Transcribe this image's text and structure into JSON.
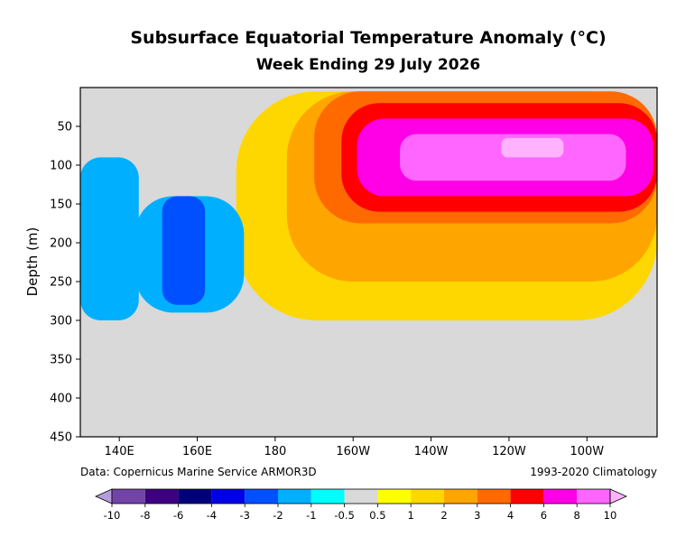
{
  "chart_data": {
    "type": "heatmap",
    "title": "Subsurface Equatorial Temperature Anomaly (°C)",
    "subtitle": "Week Ending 29 July 2026",
    "xlabel": "",
    "ylabel": "Depth (m)",
    "x_ticks": [
      {
        "value": 140,
        "label": "140E"
      },
      {
        "value": 160,
        "label": "160E"
      },
      {
        "value": 180,
        "label": "180"
      },
      {
        "value": 200,
        "label": "160W"
      },
      {
        "value": 220,
        "label": "140W"
      },
      {
        "value": 240,
        "label": "120W"
      },
      {
        "value": 260,
        "label": "100W"
      }
    ],
    "xlim": [
      130,
      278
    ],
    "y_ticks": [
      50,
      100,
      150,
      200,
      250,
      300,
      350,
      400,
      450
    ],
    "ylim": [
      450,
      0
    ],
    "y_inverted": true,
    "source_note": "Data: Copernicus Marine Service ARMOR3D",
    "climatology_note": "1993-2020 Climatology",
    "colorbar": {
      "extend": "both",
      "levels": [
        "-10",
        "-8",
        "-6",
        "-4",
        "-3",
        "-2",
        "-1",
        "-0.5",
        "0.5",
        "1",
        "2",
        "3",
        "4",
        "6",
        "8",
        "10"
      ],
      "colors": [
        "#b39ddb",
        "#7344a8",
        "#3d0080",
        "#00007a",
        "#0000e6",
        "#0050ff",
        "#00b0ff",
        "#00ffff",
        "#d9d9d9",
        "#ffff00",
        "#ffd700",
        "#ffa500",
        "#ff6a00",
        "#ff0000",
        "#ff00e6",
        "#ff66ff",
        "#ffb3ff"
      ]
    },
    "anomaly_regions": [
      {
        "category": "1",
        "x": [
          170,
          278
        ],
        "depth": [
          5,
          300
        ]
      },
      {
        "category": "2",
        "x": [
          183,
          278
        ],
        "depth": [
          5,
          250
        ]
      },
      {
        "category": "3",
        "x": [
          190,
          278
        ],
        "depth": [
          5,
          175
        ]
      },
      {
        "category": "4",
        "x": [
          197,
          278
        ],
        "depth": [
          20,
          160
        ]
      },
      {
        "category": "6",
        "x": [
          201,
          277
        ],
        "depth": [
          40,
          140
        ]
      },
      {
        "category": "8",
        "x": [
          212,
          270
        ],
        "depth": [
          60,
          120
        ]
      },
      {
        "category": "10",
        "x": [
          238,
          254
        ],
        "depth": [
          65,
          90
        ]
      },
      {
        "category": "-1",
        "x": [
          130,
          145
        ],
        "depth": [
          90,
          300
        ]
      },
      {
        "category": "-1",
        "x": [
          144,
          172
        ],
        "depth": [
          140,
          290
        ]
      },
      {
        "category": "-2",
        "x": [
          151,
          162
        ],
        "depth": [
          140,
          280
        ]
      }
    ]
  }
}
